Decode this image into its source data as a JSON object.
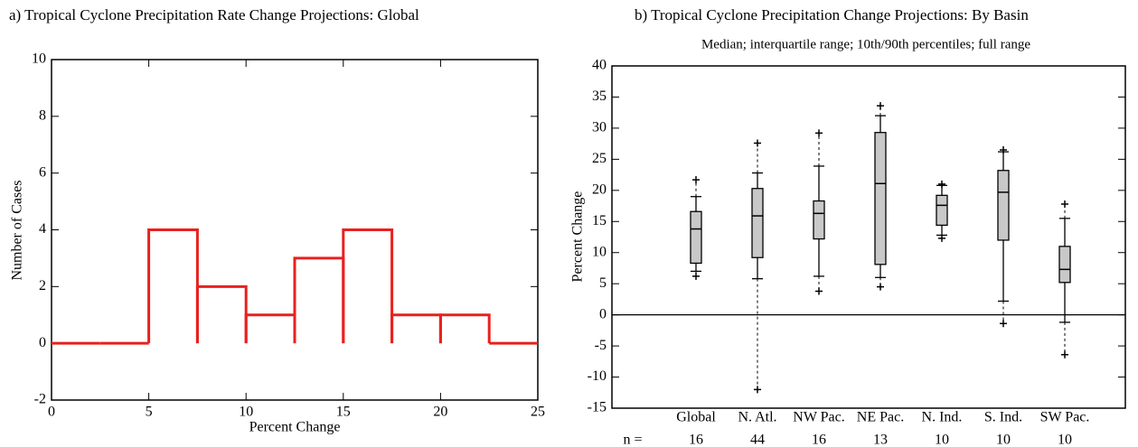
{
  "chart_data": [
    {
      "type": "histogram",
      "title": "a)   Tropical Cyclone Precipitation Rate Change Projections:  Global",
      "x_label": "Percent Change",
      "y_label": "Number of Cases",
      "bins": [
        0,
        2.5,
        5,
        7.5,
        10,
        12.5,
        15,
        17.5,
        20,
        22.5,
        25
      ],
      "values": [
        0,
        0,
        4,
        2,
        1,
        3,
        4,
        1,
        1,
        0
      ],
      "color": "#e8211f",
      "xlim": [
        0,
        25
      ],
      "xticks": [
        0,
        5,
        10,
        15,
        20,
        25
      ],
      "ylim": [
        -2,
        10
      ],
      "yticks": [
        -2,
        0,
        2,
        4,
        6,
        8,
        10
      ]
    },
    {
      "type": "box",
      "title": "b)   Tropical Cyclone Precipitation Change Projections:  By Basin",
      "subtitle": "Median; interquartile range; 10th/90th percentiles; full range",
      "y_label": "Percent Change",
      "categories": [
        "Global",
        "N. Atl.",
        "NW Pac.",
        "NE Pac.",
        "N. Ind.",
        "S. Ind.",
        "SW Pac."
      ],
      "n_label": "n =",
      "n": [
        16,
        44,
        16,
        13,
        10,
        10,
        10
      ],
      "min": [
        6.2,
        -12,
        3.8,
        4.5,
        12.3,
        -1.4,
        -6.4
      ],
      "p10": [
        7.0,
        5.8,
        6.2,
        6.0,
        12.8,
        2.2,
        -1.2
      ],
      "q1": [
        8.3,
        9.2,
        12.2,
        8.1,
        14.4,
        12.0,
        5.2
      ],
      "median": [
        13.8,
        15.9,
        16.3,
        21.1,
        17.6,
        19.7,
        7.3
      ],
      "q3": [
        16.6,
        20.3,
        18.3,
        29.3,
        19.2,
        23.2,
        11.0
      ],
      "p90": [
        19.0,
        22.8,
        23.9,
        32.0,
        20.8,
        26.2,
        15.5
      ],
      "max": [
        21.7,
        27.6,
        29.2,
        33.6,
        21.0,
        26.5,
        17.8
      ],
      "color": "#c8c8c8",
      "zero_line": true,
      "ylim": [
        -15,
        40
      ],
      "yticks": [
        -15,
        -10,
        -5,
        0,
        5,
        10,
        15,
        20,
        25,
        30,
        35,
        40
      ]
    }
  ]
}
